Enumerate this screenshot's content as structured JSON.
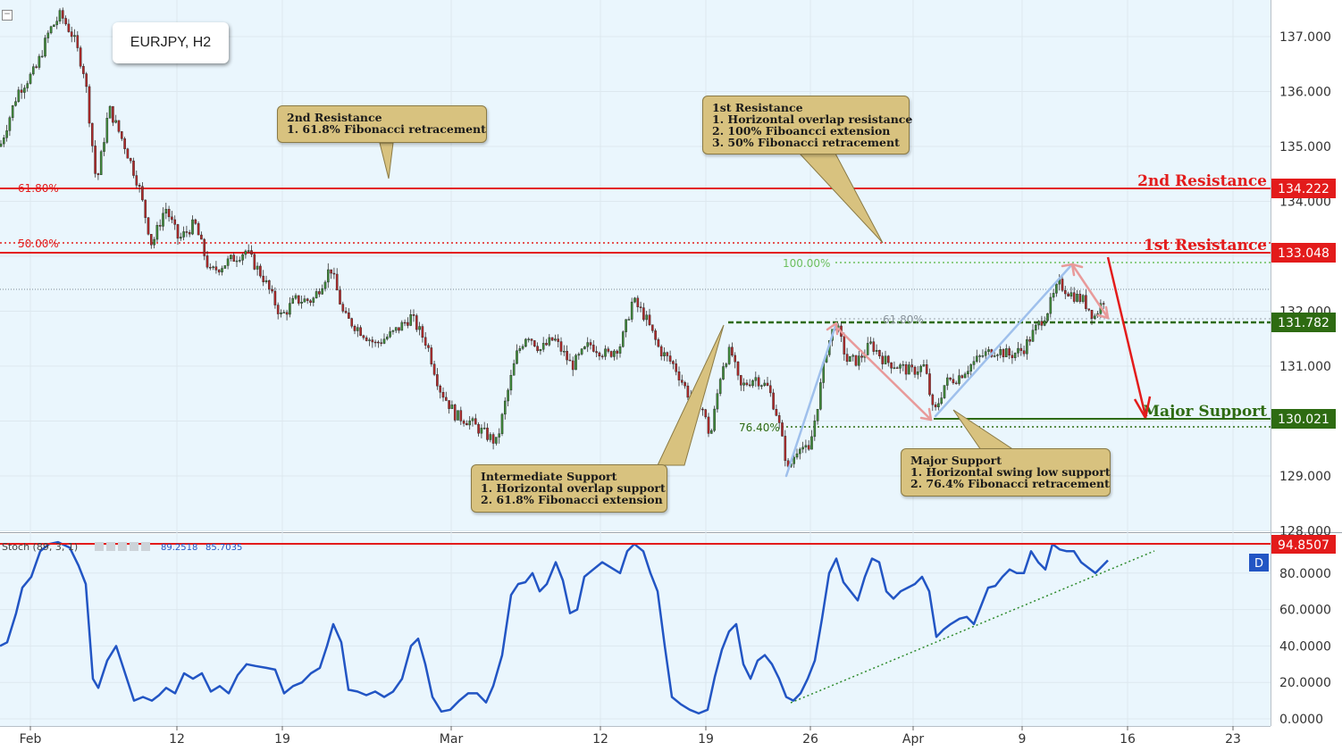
{
  "symbol": "EURJPY, H2",
  "colors": {
    "background": "#eaf6fd",
    "resistance": "#e31b1b",
    "support": "#2e6b12",
    "stoch_line": "#2255c4",
    "callout_bg": "#d8c27f",
    "fib_green": "#6cbf5c",
    "arrow_blue": "#9fc0ec",
    "arrow_red": "#e89a9a"
  },
  "price_axis": {
    "ticks": [
      "137.000",
      "136.000",
      "135.000",
      "134.000",
      "133.000",
      "132.000",
      "131.000",
      "130.000",
      "129.000",
      "128.000"
    ],
    "labels": {
      "second_resistance": "134.222",
      "first_resistance": "133.048",
      "intermediate_support": "131.782",
      "major_support": "130.021"
    }
  },
  "levels": {
    "second_resistance_label": "2nd Resistance",
    "first_resistance_label": "1st Resistance",
    "major_support_label": "Major Support"
  },
  "fib_labels": {
    "fib_61_80_left": "61.80%",
    "fib_50_00_left": "50.00%",
    "fib_100_00": "100.00%",
    "fib_61_80_mid": "61.80%",
    "fib_76_40": "76.40%"
  },
  "callouts": {
    "second_resistance": {
      "title": "2nd Resistance",
      "lines": [
        "1. 61.8% Fibonacci retracement"
      ]
    },
    "first_resistance": {
      "title": "1st Resistance",
      "lines": [
        "1. Horizontal overlap resistance",
        "2. 100% Fiboancci extension",
        "3. 50% Fibonacci retracement"
      ]
    },
    "intermediate_support": {
      "title": "Intermediate Support",
      "lines": [
        "1. Horizontal overlap support",
        "2. 61.8% Fibonacci extension"
      ]
    },
    "major_support": {
      "title": "Major Support",
      "lines": [
        "1. Horizontal swing low support",
        "2. 76.4% Fibonacci retracement"
      ]
    }
  },
  "stoch": {
    "title": "Stoch (89, 3, 1)",
    "value_k": "89.2518",
    "value_d": "85.7035",
    "level_label": "94.8507",
    "d_badge": "D",
    "ticks": [
      "80.0000",
      "60.0000",
      "40.0000",
      "20.0000",
      "0.0000"
    ]
  },
  "time_axis": {
    "labels": [
      "Feb",
      "12",
      "19",
      "Mar",
      "12",
      "19",
      "26",
      "Apr",
      "9",
      "16",
      "23"
    ]
  },
  "chart_data": {
    "type": "candlestick",
    "title": "EURJPY, H2",
    "ylim": [
      127.9,
      137.6
    ],
    "price_path": [
      [
        0,
        135.0
      ],
      [
        20,
        136.0
      ],
      [
        40,
        136.4
      ],
      [
        55,
        137.1
      ],
      [
        68,
        137.4
      ],
      [
        82,
        137.0
      ],
      [
        95,
        136.3
      ],
      [
        108,
        134.3
      ],
      [
        122,
        135.7
      ],
      [
        140,
        135.0
      ],
      [
        155,
        134.3
      ],
      [
        170,
        133.2
      ],
      [
        185,
        133.9
      ],
      [
        200,
        133.3
      ],
      [
        218,
        133.6
      ],
      [
        235,
        132.7
      ],
      [
        255,
        132.9
      ],
      [
        275,
        133.1
      ],
      [
        295,
        132.6
      ],
      [
        315,
        131.9
      ],
      [
        330,
        132.2
      ],
      [
        350,
        132.2
      ],
      [
        370,
        132.8
      ],
      [
        385,
        131.9
      ],
      [
        400,
        131.7
      ],
      [
        420,
        131.4
      ],
      [
        440,
        131.6
      ],
      [
        460,
        131.9
      ],
      [
        478,
        131.4
      ],
      [
        492,
        130.6
      ],
      [
        510,
        130.1
      ],
      [
        525,
        130.0
      ],
      [
        540,
        129.8
      ],
      [
        556,
        129.6
      ],
      [
        565,
        130.3
      ],
      [
        578,
        131.2
      ],
      [
        590,
        131.6
      ],
      [
        605,
        131.3
      ],
      [
        620,
        131.5
      ],
      [
        640,
        131.0
      ],
      [
        660,
        131.4
      ],
      [
        680,
        131.2
      ],
      [
        695,
        131.4
      ],
      [
        708,
        132.2
      ],
      [
        722,
        131.9
      ],
      [
        738,
        131.3
      ],
      [
        755,
        131.0
      ],
      [
        770,
        130.5
      ],
      [
        785,
        130.3
      ],
      [
        795,
        129.7
      ],
      [
        808,
        131.0
      ],
      [
        818,
        131.3
      ],
      [
        828,
        130.6
      ],
      [
        845,
        130.8
      ],
      [
        860,
        130.6
      ],
      [
        870,
        130.1
      ],
      [
        882,
        129.1
      ],
      [
        895,
        129.6
      ],
      [
        905,
        129.4
      ],
      [
        915,
        130.3
      ],
      [
        925,
        131.3
      ],
      [
        935,
        131.8
      ],
      [
        948,
        131.1
      ],
      [
        960,
        131.1
      ],
      [
        975,
        131.4
      ],
      [
        990,
        131.1
      ],
      [
        1005,
        131.0
      ],
      [
        1020,
        130.9
      ],
      [
        1035,
        131.0
      ],
      [
        1045,
        130.1
      ],
      [
        1058,
        130.7
      ],
      [
        1072,
        130.8
      ],
      [
        1085,
        131.0
      ],
      [
        1100,
        131.2
      ],
      [
        1115,
        131.3
      ],
      [
        1130,
        131.2
      ],
      [
        1145,
        131.3
      ],
      [
        1160,
        131.7
      ],
      [
        1172,
        132.0
      ],
      [
        1185,
        132.5
      ],
      [
        1200,
        132.3
      ],
      [
        1212,
        132.2
      ],
      [
        1225,
        131.9
      ],
      [
        1238,
        132.3
      ]
    ],
    "levels": [
      {
        "name": "2nd Resistance",
        "price": 134.222
      },
      {
        "name": "1st Resistance",
        "price": 133.048
      },
      {
        "name": "Intermediate Support",
        "price": 131.782
      },
      {
        "name": "Major Support",
        "price": 130.021
      }
    ],
    "stochastic": {
      "ylim": [
        0,
        100
      ],
      "overbought_level": 94.8507,
      "path": [
        [
          0,
          40
        ],
        [
          8,
          42
        ],
        [
          18,
          58
        ],
        [
          25,
          72
        ],
        [
          35,
          78
        ],
        [
          45,
          92
        ],
        [
          55,
          96
        ],
        [
          65,
          97
        ],
        [
          78,
          94
        ],
        [
          88,
          84
        ],
        [
          96,
          74
        ],
        [
          104,
          22
        ],
        [
          110,
          17
        ],
        [
          120,
          32
        ],
        [
          130,
          40
        ],
        [
          140,
          25
        ],
        [
          150,
          10
        ],
        [
          160,
          12
        ],
        [
          170,
          10
        ],
        [
          178,
          13
        ],
        [
          186,
          17
        ],
        [
          196,
          14
        ],
        [
          206,
          25
        ],
        [
          216,
          22
        ],
        [
          226,
          25
        ],
        [
          236,
          15
        ],
        [
          246,
          18
        ],
        [
          256,
          14
        ],
        [
          266,
          24
        ],
        [
          276,
          30
        ],
        [
          286,
          29
        ],
        [
          298,
          28
        ],
        [
          308,
          27
        ],
        [
          318,
          14
        ],
        [
          328,
          18
        ],
        [
          338,
          20
        ],
        [
          348,
          25
        ],
        [
          358,
          28
        ],
        [
          366,
          40
        ],
        [
          373,
          52
        ],
        [
          382,
          42
        ],
        [
          390,
          16
        ],
        [
          400,
          15
        ],
        [
          410,
          13
        ],
        [
          420,
          15
        ],
        [
          430,
          12
        ],
        [
          440,
          15
        ],
        [
          450,
          22
        ],
        [
          460,
          40
        ],
        [
          468,
          44
        ],
        [
          476,
          30
        ],
        [
          484,
          12
        ],
        [
          494,
          4
        ],
        [
          504,
          5
        ],
        [
          514,
          10
        ],
        [
          524,
          14
        ],
        [
          534,
          14
        ],
        [
          544,
          9
        ],
        [
          552,
          18
        ],
        [
          562,
          35
        ],
        [
          572,
          68
        ],
        [
          580,
          74
        ],
        [
          588,
          75
        ],
        [
          596,
          80
        ],
        [
          604,
          70
        ],
        [
          612,
          74
        ],
        [
          622,
          86
        ],
        [
          630,
          76
        ],
        [
          638,
          58
        ],
        [
          646,
          60
        ],
        [
          654,
          78
        ],
        [
          664,
          82
        ],
        [
          674,
          86
        ],
        [
          684,
          83
        ],
        [
          694,
          80
        ],
        [
          702,
          92
        ],
        [
          710,
          96
        ],
        [
          720,
          92
        ],
        [
          728,
          80
        ],
        [
          736,
          70
        ],
        [
          744,
          40
        ],
        [
          752,
          12
        ],
        [
          762,
          8
        ],
        [
          772,
          5
        ],
        [
          782,
          3
        ],
        [
          792,
          5
        ],
        [
          800,
          23
        ],
        [
          808,
          38
        ],
        [
          816,
          48
        ],
        [
          824,
          52
        ],
        [
          832,
          30
        ],
        [
          840,
          22
        ],
        [
          848,
          32
        ],
        [
          856,
          35
        ],
        [
          864,
          30
        ],
        [
          872,
          22
        ],
        [
          880,
          12
        ],
        [
          888,
          10
        ],
        [
          896,
          14
        ],
        [
          904,
          22
        ],
        [
          912,
          32
        ],
        [
          920,
          55
        ],
        [
          928,
          80
        ],
        [
          936,
          88
        ],
        [
          944,
          75
        ],
        [
          952,
          70
        ],
        [
          960,
          65
        ],
        [
          968,
          78
        ],
        [
          976,
          88
        ],
        [
          984,
          86
        ],
        [
          992,
          70
        ],
        [
          1000,
          66
        ],
        [
          1008,
          70
        ],
        [
          1016,
          72
        ],
        [
          1024,
          74
        ],
        [
          1032,
          78
        ],
        [
          1040,
          70
        ],
        [
          1048,
          45
        ],
        [
          1056,
          49
        ],
        [
          1064,
          52
        ],
        [
          1074,
          55
        ],
        [
          1082,
          56
        ],
        [
          1090,
          52
        ],
        [
          1098,
          62
        ],
        [
          1106,
          72
        ],
        [
          1114,
          73
        ],
        [
          1122,
          78
        ],
        [
          1130,
          82
        ],
        [
          1138,
          80
        ],
        [
          1146,
          80
        ],
        [
          1154,
          92
        ],
        [
          1162,
          86
        ],
        [
          1170,
          82
        ],
        [
          1178,
          96
        ],
        [
          1186,
          93
        ],
        [
          1194,
          92
        ],
        [
          1202,
          92
        ],
        [
          1210,
          86
        ],
        [
          1218,
          83
        ],
        [
          1226,
          80
        ],
        [
          1234,
          84
        ],
        [
          1240,
          87
        ]
      ]
    }
  }
}
